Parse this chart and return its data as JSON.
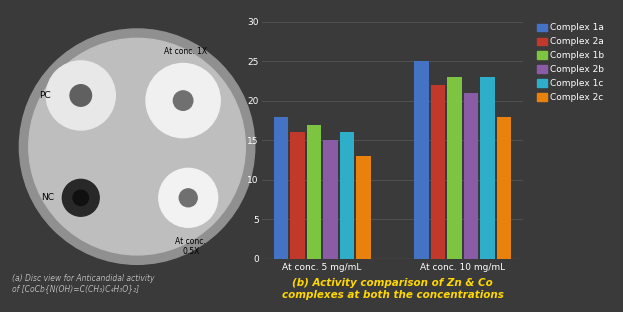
{
  "title": "(b) Activity comparison of Zn & Co\ncomplexes at both the concentrations",
  "caption_left": "(a) Disc view for Anticandidal activity\nof [CoCb{N(OH)=C(CH₃)C₄H₃O}₂]",
  "groups": [
    "At conc. 5 mg/mL",
    "At conc. 10 mg/mL"
  ],
  "series": [
    {
      "label": "Complex 1a",
      "color": "#4472C4",
      "values": [
        18,
        25
      ]
    },
    {
      "label": "Complex 2a",
      "color": "#C0392B",
      "values": [
        16,
        22
      ]
    },
    {
      "label": "Complex 1b",
      "color": "#7DC440",
      "values": [
        17,
        23
      ]
    },
    {
      "label": "Complex 2b",
      "color": "#8B5CA6",
      "values": [
        15,
        21
      ]
    },
    {
      "label": "Complex 1c",
      "color": "#2EAEC8",
      "values": [
        16,
        23
      ]
    },
    {
      "label": "Complex 2c",
      "color": "#E8820C",
      "values": [
        13,
        18
      ]
    }
  ],
  "ylim": [
    0,
    30
  ],
  "yticks": [
    0,
    5,
    10,
    15,
    20,
    25,
    30
  ],
  "background_color": "#3A3A3A",
  "grid_color": "#555555",
  "text_color": "#FFFFFF",
  "title_color": "#FFD700",
  "title_fontsize": 7.5,
  "axis_fontsize": 6.5,
  "legend_fontsize": 6.5,
  "disc_bg": "#BEBEBE",
  "disc_outer": "#A8A8A8",
  "pc_circle_color": "#F0F0F0",
  "nc_circle_color": "#101010",
  "conc1x_color": "#D8D8D8",
  "conc05x_color": "#E8E8E8"
}
